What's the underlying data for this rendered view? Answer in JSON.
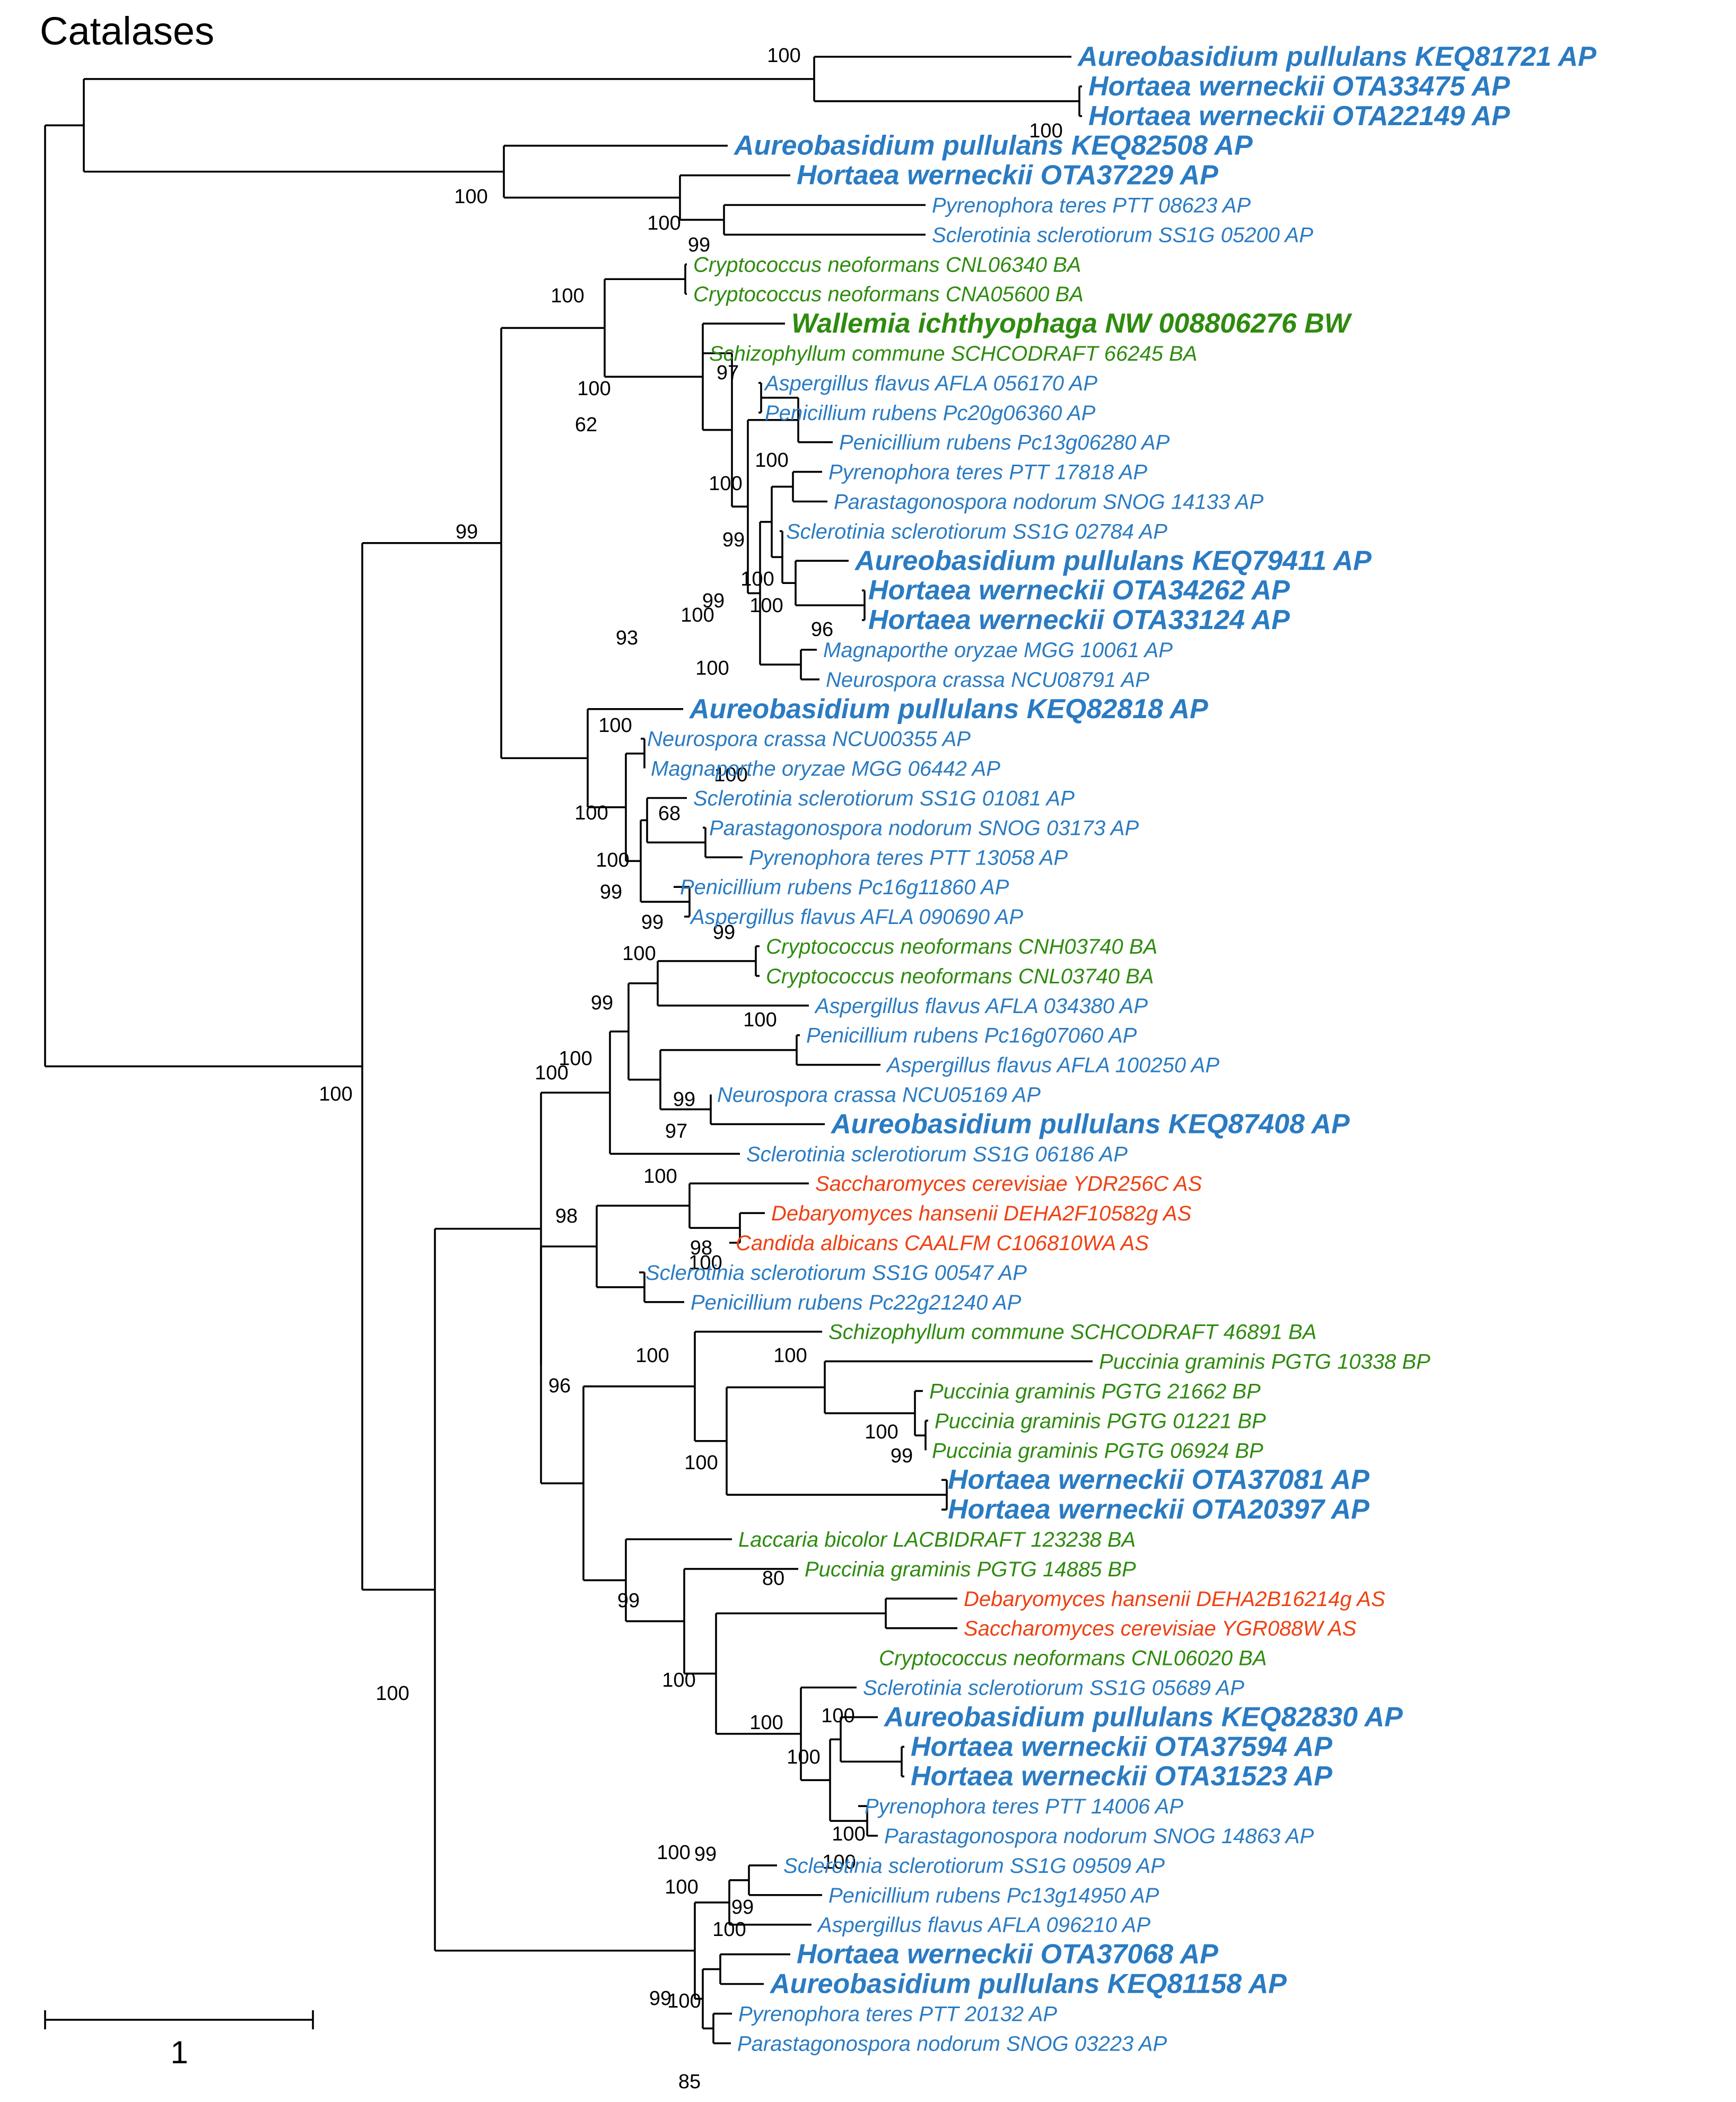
{
  "title": "Catalases",
  "colors": {
    "AP": "#2a7bc2",
    "B": "#2e8b0f",
    "AS": "#ee4112",
    "line": "#000000"
  },
  "scale_bar": {
    "label": "1"
  },
  "taxa": [
    {
      "label": "Aureobasidium pullulans KEQ81721 AP",
      "group": "AP",
      "bold": true
    },
    {
      "label": "Hortaea werneckii OTA33475 AP",
      "group": "AP",
      "bold": true
    },
    {
      "label": "Hortaea werneckii OTA22149 AP",
      "group": "AP",
      "bold": true
    },
    {
      "label": "Aureobasidium pullulans KEQ82508 AP",
      "group": "AP",
      "bold": true
    },
    {
      "label": "Hortaea werneckii OTA37229 AP",
      "group": "AP",
      "bold": true
    },
    {
      "label": "Pyrenophora teres PTT 08623 AP",
      "group": "AP",
      "bold": false
    },
    {
      "label": "Sclerotinia sclerotiorum SS1G 05200 AP",
      "group": "AP",
      "bold": false
    },
    {
      "label": "Cryptococcus neoformans CNL06340 BA",
      "group": "B",
      "bold": false
    },
    {
      "label": "Cryptococcus neoformans CNA05600 BA",
      "group": "B",
      "bold": false
    },
    {
      "label": "Wallemia ichthyophaga NW 008806276 BW",
      "group": "B",
      "bold": true
    },
    {
      "label": "Schizophyllum commune SCHCODRAFT 66245 BA",
      "group": "B",
      "bold": false
    },
    {
      "label": "Aspergillus flavus AFLA 056170 AP",
      "group": "AP",
      "bold": false
    },
    {
      "label": "Penicillium rubens Pc20g06360 AP",
      "group": "AP",
      "bold": false
    },
    {
      "label": "Penicillium rubens Pc13g06280 AP",
      "group": "AP",
      "bold": false
    },
    {
      "label": "Pyrenophora teres PTT 17818 AP",
      "group": "AP",
      "bold": false
    },
    {
      "label": "Parastagonospora nodorum SNOG 14133 AP",
      "group": "AP",
      "bold": false
    },
    {
      "label": "Sclerotinia sclerotiorum SS1G 02784 AP",
      "group": "AP",
      "bold": false
    },
    {
      "label": "Aureobasidium pullulans KEQ79411 AP",
      "group": "AP",
      "bold": true
    },
    {
      "label": "Hortaea werneckii OTA34262 AP",
      "group": "AP",
      "bold": true
    },
    {
      "label": "Hortaea werneckii OTA33124 AP",
      "group": "AP",
      "bold": true
    },
    {
      "label": "Magnaporthe oryzae MGG 10061 AP",
      "group": "AP",
      "bold": false
    },
    {
      "label": "Neurospora crassa NCU08791 AP",
      "group": "AP",
      "bold": false
    },
    {
      "label": "Aureobasidium pullulans KEQ82818 AP",
      "group": "AP",
      "bold": true
    },
    {
      "label": "Neurospora crassa NCU00355 AP",
      "group": "AP",
      "bold": false
    },
    {
      "label": "Magnaporthe oryzae MGG 06442 AP",
      "group": "AP",
      "bold": false
    },
    {
      "label": "Sclerotinia sclerotiorum SS1G 01081 AP",
      "group": "AP",
      "bold": false
    },
    {
      "label": "Parastagonospora nodorum SNOG 03173 AP",
      "group": "AP",
      "bold": false
    },
    {
      "label": "Pyrenophora teres PTT 13058 AP",
      "group": "AP",
      "bold": false
    },
    {
      "label": "Penicillium rubens Pc16g11860 AP",
      "group": "AP",
      "bold": false
    },
    {
      "label": "Aspergillus flavus AFLA 090690 AP",
      "group": "AP",
      "bold": false
    },
    {
      "label": "Cryptococcus neoformans CNH03740 BA",
      "group": "B",
      "bold": false
    },
    {
      "label": "Cryptococcus neoformans CNL03740 BA",
      "group": "B",
      "bold": false
    },
    {
      "label": "Aspergillus flavus AFLA 034380 AP",
      "group": "AP",
      "bold": false
    },
    {
      "label": "Penicillium rubens Pc16g07060 AP",
      "group": "AP",
      "bold": false
    },
    {
      "label": "Aspergillus flavus AFLA 100250 AP",
      "group": "AP",
      "bold": false
    },
    {
      "label": "Neurospora crassa NCU05169 AP",
      "group": "AP",
      "bold": false
    },
    {
      "label": "Aureobasidium pullulans KEQ87408 AP",
      "group": "AP",
      "bold": true
    },
    {
      "label": "Sclerotinia sclerotiorum SS1G 06186 AP",
      "group": "AP",
      "bold": false
    },
    {
      "label": "Saccharomyces cerevisiae YDR256C AS",
      "group": "AS",
      "bold": false
    },
    {
      "label": "Debaryomyces hansenii DEHA2F10582g AS",
      "group": "AS",
      "bold": false
    },
    {
      "label": "Candida albicans CAALFM C106810WA AS",
      "group": "AS",
      "bold": false
    },
    {
      "label": "Sclerotinia sclerotiorum SS1G 00547 AP",
      "group": "AP",
      "bold": false
    },
    {
      "label": "Penicillium rubens Pc22g21240 AP",
      "group": "AP",
      "bold": false
    },
    {
      "label": "Schizophyllum commune SCHCODRAFT 46891 BA",
      "group": "B",
      "bold": false
    },
    {
      "label": "Puccinia graminis PGTG 10338 BP",
      "group": "B",
      "bold": false
    },
    {
      "label": "Puccinia graminis PGTG 21662 BP",
      "group": "B",
      "bold": false
    },
    {
      "label": "Puccinia graminis PGTG 01221 BP",
      "group": "B",
      "bold": false
    },
    {
      "label": "Puccinia graminis PGTG 06924 BP",
      "group": "B",
      "bold": false
    },
    {
      "label": "Hortaea werneckii OTA37081 AP",
      "group": "AP",
      "bold": true
    },
    {
      "label": "Hortaea werneckii OTA20397 AP",
      "group": "AP",
      "bold": true
    },
    {
      "label": "Laccaria bicolor LACBIDRAFT 123238 BA",
      "group": "B",
      "bold": false
    },
    {
      "label": "Puccinia graminis PGTG 14885 BP",
      "group": "B",
      "bold": false
    },
    {
      "label": "Debaryomyces hansenii DEHA2B16214g AS",
      "group": "AS",
      "bold": false
    },
    {
      "label": "Saccharomyces cerevisiae YGR088W AS",
      "group": "AS",
      "bold": false
    },
    {
      "label": "Cryptococcus neoformans CNL06020 BA",
      "group": "B",
      "bold": false
    },
    {
      "label": "Sclerotinia sclerotiorum SS1G 05689 AP",
      "group": "AP",
      "bold": false
    },
    {
      "label": "Aureobasidium pullulans KEQ82830 AP",
      "group": "AP",
      "bold": true
    },
    {
      "label": "Hortaea werneckii OTA37594 AP",
      "group": "AP",
      "bold": true
    },
    {
      "label": "Hortaea werneckii OTA31523 AP",
      "group": "AP",
      "bold": true
    },
    {
      "label": "Pyrenophora teres PTT 14006 AP",
      "group": "AP",
      "bold": false
    },
    {
      "label": "Parastagonospora nodorum SNOG 14863 AP",
      "group": "AP",
      "bold": false
    },
    {
      "label": "Sclerotinia sclerotiorum SS1G 09509 AP",
      "group": "AP",
      "bold": false
    },
    {
      "label": "Penicillium rubens Pc13g14950 AP",
      "group": "AP",
      "bold": false
    },
    {
      "label": "Aspergillus flavus AFLA 096210 AP",
      "group": "AP",
      "bold": false
    },
    {
      "label": "Hortaea werneckii OTA37068 AP",
      "group": "AP",
      "bold": true
    },
    {
      "label": "Aureobasidium pullulans KEQ81158 AP",
      "group": "AP",
      "bold": true
    },
    {
      "label": "Pyrenophora teres PTT 20132 AP",
      "group": "AP",
      "bold": false
    },
    {
      "label": "Parastagonospora nodorum SNOG 03223 AP",
      "group": "AP",
      "bold": false
    }
  ],
  "support_values": [
    "100",
    "100",
    "100",
    "99",
    "97",
    "100",
    "100",
    "96",
    "100",
    "100",
    "100",
    "100",
    "100",
    "68",
    "99",
    "99",
    "100",
    "100",
    "99",
    "99",
    "100",
    "100",
    "97",
    "99",
    "100",
    "100",
    "100",
    "98",
    "98",
    "100",
    "100",
    "99",
    "100",
    "100",
    "80",
    "100",
    "100",
    "100",
    "100",
    "99",
    "96",
    "100",
    "99",
    "100",
    "100",
    "85",
    "100",
    "99",
    "100",
    "100",
    "99",
    "100",
    "100",
    "99",
    "100",
    "93",
    "100",
    "100",
    "100",
    "99",
    "100",
    "99",
    "62"
  ]
}
